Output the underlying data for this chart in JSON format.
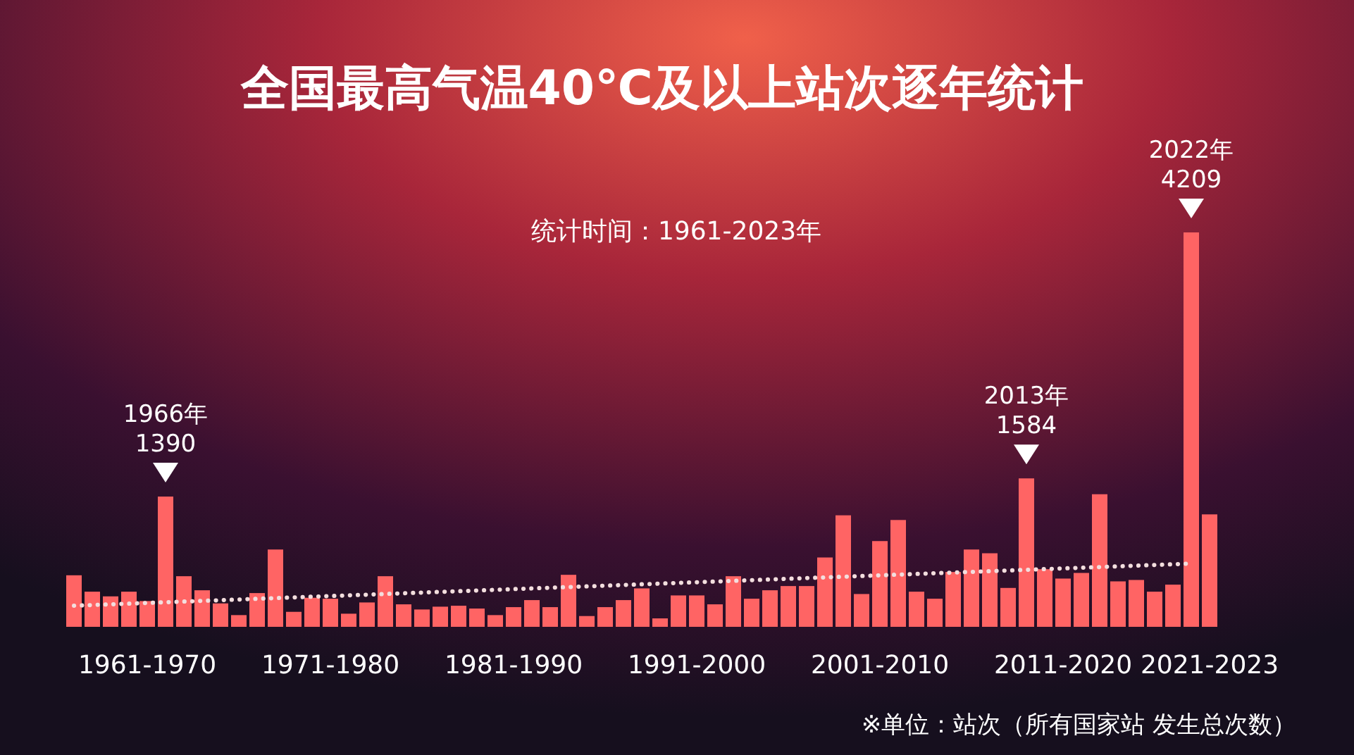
{
  "chart_data": {
    "type": "bar",
    "title": "全国最高气温40℃及以上站次逐年统计",
    "subtitle": "统计时间：1961-2023年",
    "annotations": [
      "※单位：站次（所有国家站 发生总次数）"
    ],
    "categories": [
      null,
      null,
      null,
      null,
      "1961-1970",
      null,
      null,
      null,
      null,
      null,
      null,
      null,
      null,
      null,
      "1971-1980",
      null,
      null,
      null,
      null,
      null,
      null,
      null,
      null,
      null,
      "1981-1990",
      null,
      null,
      null,
      null,
      null,
      null,
      null,
      null,
      null,
      "1991-2000",
      null,
      null,
      null,
      null,
      null,
      null,
      null,
      null,
      null,
      "2001-2010",
      null,
      null,
      null,
      null,
      null,
      null,
      null,
      null,
      null,
      "2011-2020",
      null,
      null,
      null,
      null,
      null,
      null,
      null,
      "2021-2023"
    ],
    "series": [
      {
        "color": "#ff6464",
        "values": [
          550,
          375,
          325,
          375,
          275,
          1390,
          540,
          390,
          250,
          125,
          360,
          825,
          160,
          310,
          300,
          140,
          260,
          540,
          240,
          185,
          215,
          225,
          195,
          125,
          210,
          285,
          210,
          555,
          115,
          210,
          285,
          410,
          90,
          335,
          335,
          240,
          540,
          300,
          390,
          435,
          435,
          740,
          1190,
          350,
          915,
          1140,
          375,
          300,
          585,
          825,
          785,
          415,
          1584,
          615,
          515,
          575,
          1415,
          485,
          500,
          375,
          450,
          4209,
          1200
        ],
        "value_labels": [
          null,
          null,
          null,
          null,
          null,
          "1966年\n1390",
          null,
          null,
          null,
          null,
          null,
          null,
          null,
          null,
          null,
          null,
          null,
          null,
          null,
          null,
          null,
          null,
          null,
          null,
          null,
          null,
          null,
          null,
          null,
          null,
          null,
          null,
          null,
          null,
          null,
          null,
          null,
          null,
          null,
          null,
          null,
          null,
          null,
          null,
          null,
          null,
          null,
          null,
          null,
          null,
          null,
          null,
          "2013年\n1584",
          null,
          null,
          null,
          null,
          null,
          null,
          null,
          null,
          "2022年\n4209",
          null
        ]
      },
      {
        "type": "line",
        "color": "#f3dede",
        "line_style": "dotted",
        "values": [
          225,
          null,
          null,
          null,
          null,
          null,
          null,
          null,
          null,
          null,
          null,
          null,
          null,
          null,
          null,
          null,
          null,
          null,
          null,
          null,
          null,
          null,
          null,
          null,
          null,
          null,
          null,
          null,
          null,
          null,
          null,
          null,
          null,
          null,
          null,
          null,
          null,
          null,
          null,
          null,
          null,
          null,
          null,
          null,
          null,
          null,
          null,
          null,
          null,
          null,
          null,
          null,
          null,
          null,
          null,
          null,
          null,
          null,
          null,
          null,
          null,
          675,
          null
        ]
      }
    ]
  }
}
